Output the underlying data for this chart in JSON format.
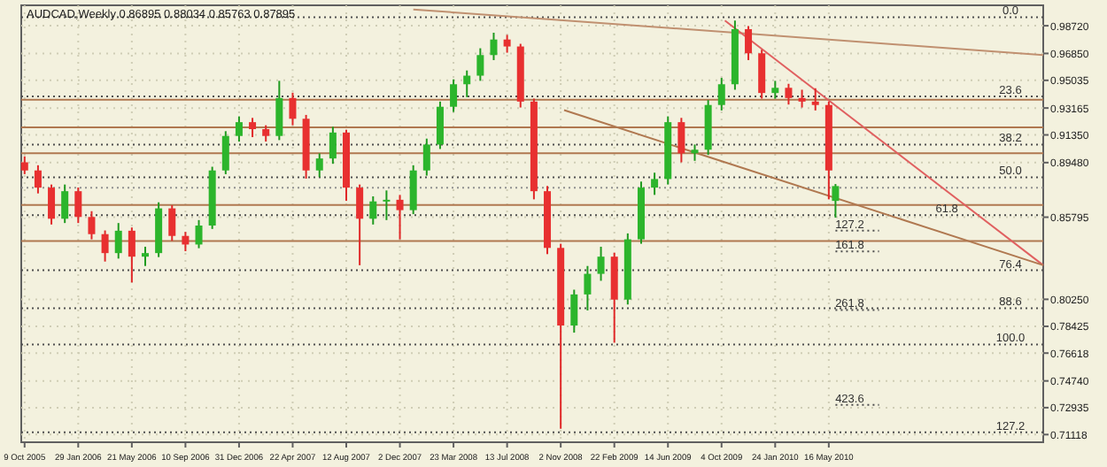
{
  "chart_data": {
    "type": "candlestick",
    "title": "AUDCAD,Weekly  0.86895 0.88034 0.85763 0.87895",
    "grid": true,
    "x": [
      "2005-10-09",
      "2005-11-06",
      "2005-12-04",
      "2006-01-01",
      "2006-01-29",
      "2006-02-26",
      "2006-03-26",
      "2006-04-23",
      "2006-05-21",
      "2006-06-18",
      "2006-07-16",
      "2006-08-13",
      "2006-09-10",
      "2006-10-08",
      "2006-11-05",
      "2006-12-03",
      "2006-12-31",
      "2007-01-28",
      "2007-02-25",
      "2007-03-25",
      "2007-04-22",
      "2007-05-20",
      "2007-06-17",
      "2007-07-15",
      "2007-08-12",
      "2007-09-09",
      "2007-10-07",
      "2007-11-04",
      "2007-12-02",
      "2007-12-30",
      "2008-01-27",
      "2008-02-24",
      "2008-03-23",
      "2008-04-20",
      "2008-05-18",
      "2008-06-15",
      "2008-07-13",
      "2008-08-10",
      "2008-09-07",
      "2008-10-05",
      "2008-11-02",
      "2008-11-30",
      "2008-12-28",
      "2009-01-25",
      "2009-02-22",
      "2009-03-22",
      "2009-04-19",
      "2009-05-17",
      "2009-06-14",
      "2009-07-12",
      "2009-08-09",
      "2009-09-06",
      "2009-10-04",
      "2009-11-01",
      "2009-11-29",
      "2009-12-27",
      "2010-01-24",
      "2010-02-21",
      "2010-03-21",
      "2010-04-18",
      "2010-05-16",
      "2010-05-30"
    ],
    "ohlc": [
      [
        0.895,
        0.899,
        0.887,
        0.8895
      ],
      [
        0.8895,
        0.893,
        0.874,
        0.8779
      ],
      [
        0.8779,
        0.88,
        0.853,
        0.8569
      ],
      [
        0.8569,
        0.88,
        0.854,
        0.8755
      ],
      [
        0.8755,
        0.878,
        0.854,
        0.8581
      ],
      [
        0.8581,
        0.862,
        0.843,
        0.8465
      ],
      [
        0.8465,
        0.849,
        0.828,
        0.8337
      ],
      [
        0.8337,
        0.854,
        0.83,
        0.8488
      ],
      [
        0.8488,
        0.851,
        0.8139,
        0.8313
      ],
      [
        0.8313,
        0.838,
        0.825,
        0.8337
      ],
      [
        0.8337,
        0.868,
        0.831,
        0.8639
      ],
      [
        0.8639,
        0.866,
        0.842,
        0.8453
      ],
      [
        0.8453,
        0.848,
        0.835,
        0.8395
      ],
      [
        0.8395,
        0.856,
        0.837,
        0.8523
      ],
      [
        0.8523,
        0.892,
        0.85,
        0.8895
      ],
      [
        0.8895,
        0.916,
        0.887,
        0.9128
      ],
      [
        0.9128,
        0.926,
        0.909,
        0.9221
      ],
      [
        0.9221,
        0.925,
        0.912,
        0.9174
      ],
      [
        0.9174,
        0.92,
        0.909,
        0.9128
      ],
      [
        0.9128,
        0.95,
        0.91,
        0.9384
      ],
      [
        0.9384,
        0.942,
        0.92,
        0.9244
      ],
      [
        0.9244,
        0.927,
        0.884,
        0.8895
      ],
      [
        0.8895,
        0.901,
        0.885,
        0.8976
      ],
      [
        0.8976,
        0.919,
        0.894,
        0.9151
      ],
      [
        0.9151,
        0.917,
        0.869,
        0.8779
      ],
      [
        0.8779,
        0.88,
        0.8255,
        0.8569
      ],
      [
        0.8569,
        0.872,
        0.853,
        0.8686
      ],
      [
        0.8686,
        0.876,
        0.856,
        0.8697
      ],
      [
        0.8697,
        0.873,
        0.843,
        0.8627
      ],
      [
        0.8627,
        0.893,
        0.86,
        0.8895
      ],
      [
        0.8895,
        0.911,
        0.886,
        0.907
      ],
      [
        0.907,
        0.936,
        0.904,
        0.9325
      ],
      [
        0.9325,
        0.951,
        0.929,
        0.9477
      ],
      [
        0.9477,
        0.957,
        0.939,
        0.9535
      ],
      [
        0.9535,
        0.972,
        0.95,
        0.9674
      ],
      [
        0.9674,
        0.9825,
        0.964,
        0.9779
      ],
      [
        0.9779,
        0.981,
        0.969,
        0.9732
      ],
      [
        0.9732,
        0.975,
        0.932,
        0.936
      ],
      [
        0.936,
        0.938,
        0.87,
        0.8755
      ],
      [
        0.8755,
        0.879,
        0.833,
        0.8372
      ],
      [
        0.8372,
        0.84,
        0.7151,
        0.7848
      ],
      [
        0.7848,
        0.809,
        0.78,
        0.8058
      ],
      [
        0.8058,
        0.825,
        0.795,
        0.8197
      ],
      [
        0.8197,
        0.838,
        0.815,
        0.8313
      ],
      [
        0.8313,
        0.834,
        0.7732,
        0.8023
      ],
      [
        0.8023,
        0.847,
        0.799,
        0.843
      ],
      [
        0.843,
        0.882,
        0.84,
        0.8779
      ],
      [
        0.8779,
        0.888,
        0.873,
        0.8837
      ],
      [
        0.8837,
        0.926,
        0.88,
        0.9221
      ],
      [
        0.9221,
        0.925,
        0.895,
        0.9011
      ],
      [
        0.9011,
        0.907,
        0.896,
        0.9035
      ],
      [
        0.9035,
        0.937,
        0.9,
        0.9337
      ],
      [
        0.9337,
        0.952,
        0.93,
        0.9477
      ],
      [
        0.9477,
        0.9907,
        0.944,
        0.9849
      ],
      [
        0.9849,
        0.987,
        0.964,
        0.9686
      ],
      [
        0.9686,
        0.971,
        0.938,
        0.9418
      ],
      [
        0.9418,
        0.95,
        0.938,
        0.9453
      ],
      [
        0.9453,
        0.948,
        0.934,
        0.9384
      ],
      [
        0.9384,
        0.944,
        0.932,
        0.936
      ],
      [
        0.936,
        0.945,
        0.93,
        0.9337
      ],
      [
        0.9337,
        0.936,
        0.87,
        0.8895
      ],
      [
        0.86895,
        0.88034,
        0.85763,
        0.87895
      ]
    ],
    "series": [
      {
        "type": "line",
        "color": "#c09070",
        "x": [
          "2007-12-30",
          "2011-08-07"
        ],
        "values": [
          0.9982,
          0.9674
        ]
      },
      {
        "type": "line",
        "color": "#e06060",
        "x": [
          "2009-10-11",
          "2011-08-07"
        ],
        "values": [
          0.9907,
          0.8255
        ]
      },
      {
        "type": "line",
        "color": "#b07850",
        "x": [
          "2008-11-09",
          "2011-08-07"
        ],
        "values": [
          0.9302,
          0.8255
        ]
      },
      {
        "type": "line",
        "color": "#505050",
        "line_style": "dotted",
        "x": [
          "2010-05-30",
          "2010-08-29"
        ],
        "values": [
          0.8488,
          0.8488
        ]
      },
      {
        "type": "line",
        "color": "#505050",
        "line_style": "dotted",
        "x": [
          "2010-05-30",
          "2010-08-29"
        ],
        "values": [
          0.8348,
          0.8348
        ]
      },
      {
        "type": "line",
        "color": "#505050",
        "line_style": "dotted",
        "x": [
          "2010-05-30",
          "2010-08-29"
        ],
        "values": [
          0.7953,
          0.7953
        ]
      },
      {
        "type": "line",
        "color": "#505050",
        "line_style": "dotted",
        "x": [
          "2010-05-30",
          "2010-08-29"
        ],
        "values": [
          0.7313,
          0.7313
        ]
      }
    ],
    "xlim": [
      "2005-10-02",
      "2011-08-07"
    ],
    "xticks": [
      {
        "value": "2005-10-09",
        "label": "9 Oct 2005"
      },
      {
        "value": "2006-01-29",
        "label": "29 Jan 2006"
      },
      {
        "value": "2006-05-21",
        "label": "21 May 2006"
      },
      {
        "value": "2006-09-10",
        "label": "10 Sep 2006"
      },
      {
        "value": "2006-12-31",
        "label": "31 Dec 2006"
      },
      {
        "value": "2007-04-22",
        "label": "22 Apr 2007"
      },
      {
        "value": "2007-08-12",
        "label": "12 Aug 2007"
      },
      {
        "value": "2007-12-02",
        "label": "2 Dec 2007"
      },
      {
        "value": "2008-03-23",
        "label": "23 Mar 2008"
      },
      {
        "value": "2008-07-13",
        "label": "13 Jul 2008"
      },
      {
        "value": "2008-11-02",
        "label": "2 Nov 2008"
      },
      {
        "value": "2009-02-22",
        "label": "22 Feb 2009"
      },
      {
        "value": "2009-06-14",
        "label": "14 Jun 2009"
      },
      {
        "value": "2009-10-04",
        "label": "4 Oct 2009"
      },
      {
        "value": "2010-01-24",
        "label": "24 Jan 2010"
      },
      {
        "value": "2010-05-16",
        "label": "16 May 2010"
      }
    ],
    "ylim": [
      0.706,
      1.001
    ],
    "yticks": [
      {
        "value": 0.9872,
        "label": "0.98720"
      },
      {
        "value": 0.9685,
        "label": "0.96850"
      },
      {
        "value": 0.95035,
        "label": "0.95035"
      },
      {
        "value": 0.93165,
        "label": "0.93165"
      },
      {
        "value": 0.9135,
        "label": "0.91350"
      },
      {
        "value": 0.8948,
        "label": "0.89480"
      },
      {
        "value": 0.85795,
        "label": "0.85795"
      },
      {
        "value": 0.8025,
        "label": "0.80250"
      },
      {
        "value": 0.78425,
        "label": "0.78425"
      },
      {
        "value": 0.76618,
        "label": "0.76618"
      },
      {
        "value": 0.7474,
        "label": "0.74740"
      },
      {
        "value": 0.72935,
        "label": "0.72935"
      },
      {
        "value": 0.71118,
        "label": "0.71118"
      }
    ],
    "ref_lines": [
      {
        "axis": "y",
        "value": 0.993,
        "color": "#505050",
        "line_style": "dotted"
      },
      {
        "axis": "y",
        "value": 0.9395,
        "color": "#505050",
        "line_style": "dotted"
      },
      {
        "axis": "y",
        "value": 0.907,
        "color": "#505050",
        "line_style": "dotted"
      },
      {
        "axis": "y",
        "value": 0.8849,
        "color": "#505050",
        "line_style": "dotted"
      },
      {
        "axis": "y",
        "value": 0.8593,
        "color": "#505050",
        "line_style": "dotted"
      },
      {
        "axis": "y",
        "value": 0.8221,
        "color": "#505050",
        "line_style": "dotted"
      },
      {
        "axis": "y",
        "value": 0.7965,
        "color": "#505050",
        "line_style": "dotted"
      },
      {
        "axis": "y",
        "value": 0.772,
        "color": "#505050",
        "line_style": "dotted"
      },
      {
        "axis": "y",
        "value": 0.7127,
        "color": "#505050",
        "line_style": "dotted"
      },
      {
        "axis": "y",
        "value": 0.9372,
        "color": "#b07850",
        "line_style": "solid"
      },
      {
        "axis": "y",
        "value": 0.9186,
        "color": "#b07850",
        "line_style": "solid"
      },
      {
        "axis": "y",
        "value": 0.9011,
        "color": "#b07850",
        "line_style": "solid"
      },
      {
        "axis": "y",
        "value": 0.8662,
        "color": "#b07850",
        "line_style": "solid"
      },
      {
        "axis": "y",
        "value": 0.8418,
        "color": "#b07850",
        "line_style": "solid"
      },
      {
        "axis": "y",
        "value": 0.8779,
        "color": "#909090",
        "line_style": "dotted"
      }
    ],
    "annotations": [
      {
        "text": "0.0",
        "x": "2011-05-01",
        "y": 0.993
      },
      {
        "text": "23.6",
        "x": "2011-05-01",
        "y": 0.9395
      },
      {
        "text": "38.2",
        "x": "2011-05-01",
        "y": 0.907
      },
      {
        "text": "50.0",
        "x": "2011-05-01",
        "y": 0.8849
      },
      {
        "text": "61.8",
        "x": "2010-12-19",
        "y": 0.8593
      },
      {
        "text": "76.4",
        "x": "2011-05-01",
        "y": 0.8221
      },
      {
        "text": "88.6",
        "x": "2011-05-01",
        "y": 0.7965
      },
      {
        "text": "100.0",
        "x": "2011-05-01",
        "y": 0.772
      },
      {
        "text": "127.2",
        "x": "2011-05-01",
        "y": 0.7127
      },
      {
        "text": "127.2",
        "x": "2010-05-30",
        "y": 0.8488
      },
      {
        "text": "161.8",
        "x": "2010-05-30",
        "y": 0.8348
      },
      {
        "text": "261.8",
        "x": "2010-05-30",
        "y": 0.7953
      },
      {
        "text": "423.6",
        "x": "2010-05-30",
        "y": 0.7313
      }
    ]
  }
}
